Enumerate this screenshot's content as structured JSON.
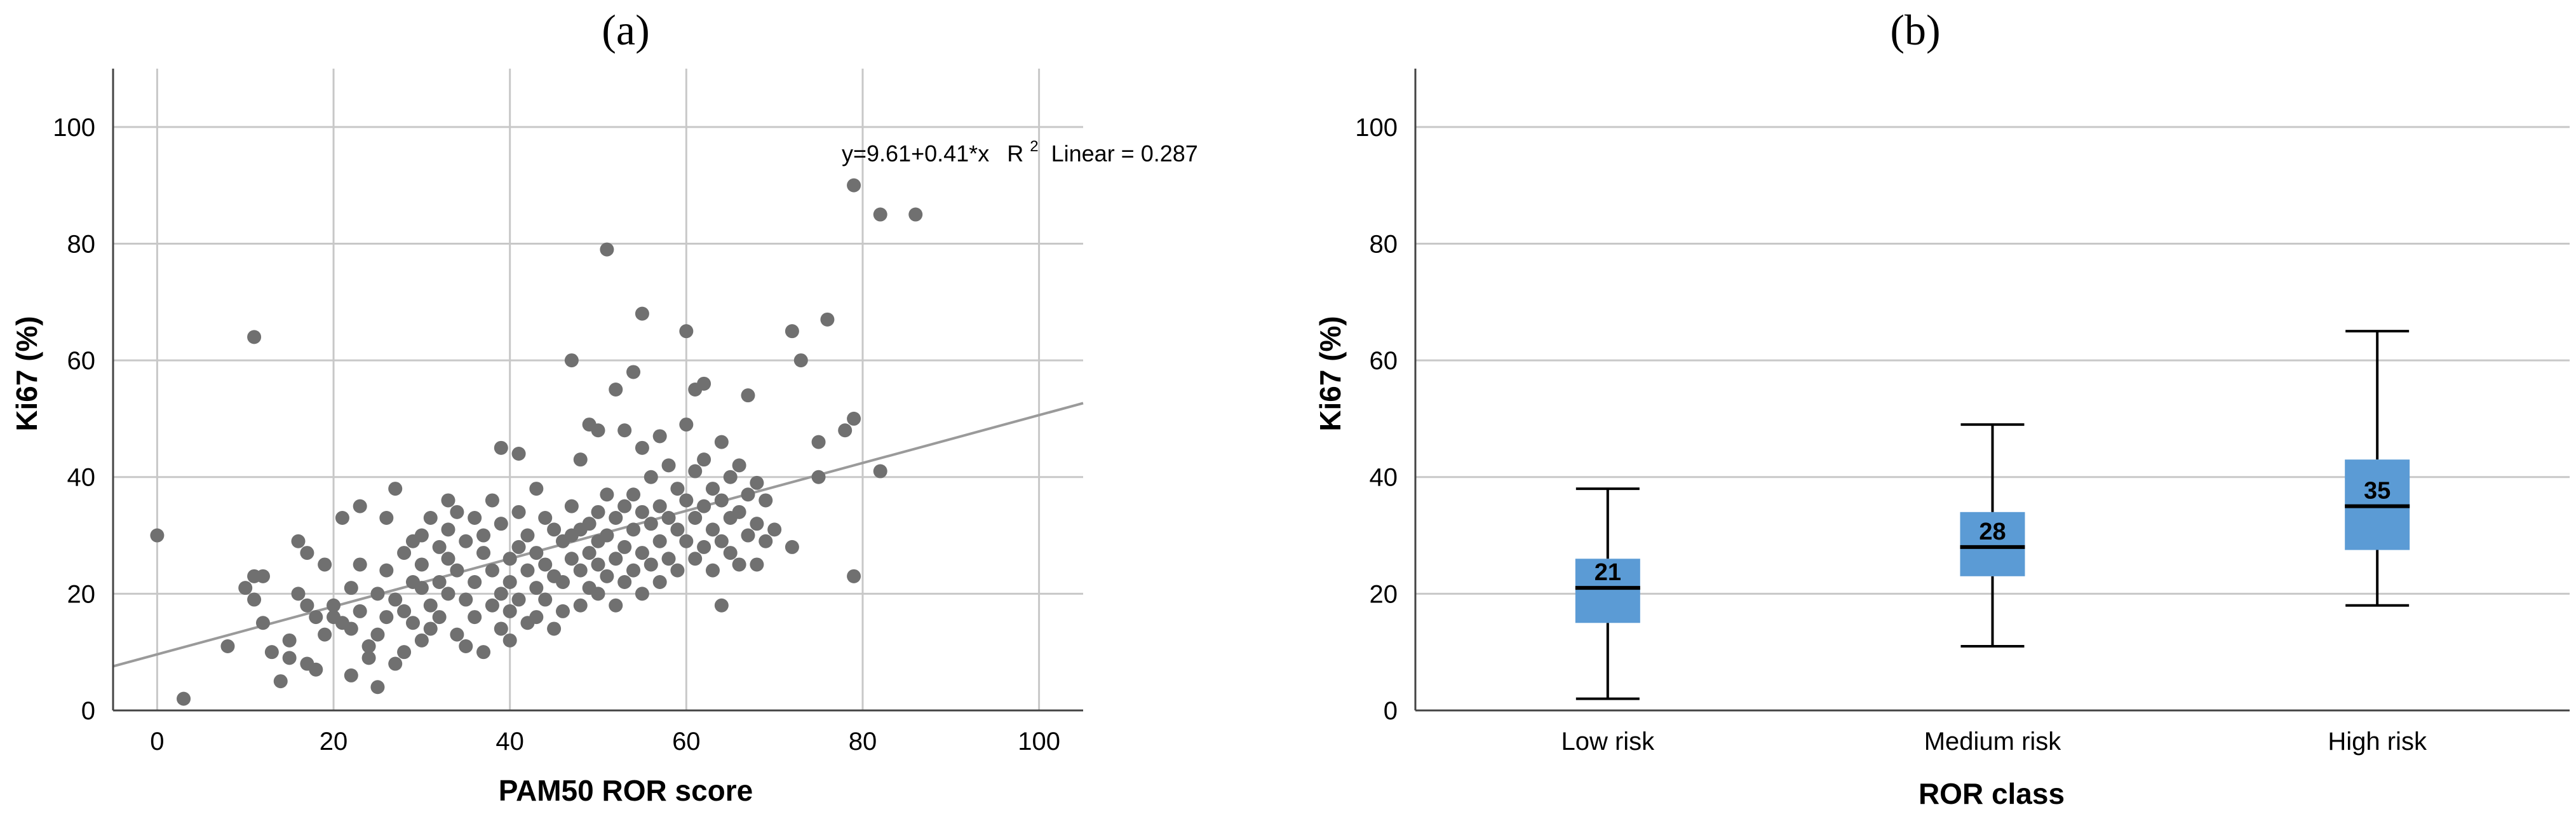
{
  "chart_data": [
    {
      "type": "scatter",
      "panel_label": "(a)",
      "xlabel": "PAM50 ROR score",
      "ylabel": "Ki67 (%)",
      "xlim": [
        -5,
        105
      ],
      "ylim": [
        0,
        110
      ],
      "xticks": [
        0,
        20,
        40,
        60,
        80,
        100
      ],
      "yticks": [
        0,
        20,
        40,
        60,
        80,
        100
      ],
      "grid": true,
      "colors": {
        "points": "#707070",
        "fit_line": "#9a9a9a",
        "grid": "#c8c8c8"
      },
      "fit": {
        "intercept": 9.61,
        "slope": 0.41
      },
      "annotation": {
        "equation": "y=9.61+0.41*x",
        "r2_prefix": "R",
        "r2_exp": "2",
        "r2_suffix": " Linear = 0.287"
      },
      "points": [
        [
          0,
          30
        ],
        [
          3,
          2
        ],
        [
          8,
          11
        ],
        [
          10,
          21
        ],
        [
          11,
          64
        ],
        [
          11,
          23
        ],
        [
          11,
          19
        ],
        [
          12,
          15
        ],
        [
          12,
          23
        ],
        [
          13,
          10
        ],
        [
          14,
          5
        ],
        [
          15,
          12
        ],
        [
          15,
          9
        ],
        [
          16,
          29
        ],
        [
          16,
          20
        ],
        [
          17,
          27
        ],
        [
          17,
          18
        ],
        [
          17,
          8
        ],
        [
          18,
          16
        ],
        [
          18,
          7
        ],
        [
          19,
          25
        ],
        [
          19,
          13
        ],
        [
          20,
          18
        ],
        [
          20,
          16
        ],
        [
          21,
          15
        ],
        [
          21,
          33
        ],
        [
          22,
          21
        ],
        [
          22,
          14
        ],
        [
          22,
          6
        ],
        [
          23,
          35
        ],
        [
          23,
          25
        ],
        [
          23,
          17
        ],
        [
          24,
          9
        ],
        [
          24,
          11
        ],
        [
          25,
          20
        ],
        [
          25,
          13
        ],
        [
          25,
          4
        ],
        [
          26,
          33
        ],
        [
          26,
          24
        ],
        [
          26,
          16
        ],
        [
          27,
          38
        ],
        [
          27,
          19
        ],
        [
          27,
          8
        ],
        [
          28,
          27
        ],
        [
          28,
          17
        ],
        [
          28,
          10
        ],
        [
          29,
          22
        ],
        [
          29,
          15
        ],
        [
          29,
          29
        ],
        [
          30,
          30
        ],
        [
          30,
          25
        ],
        [
          30,
          21
        ],
        [
          30,
          12
        ],
        [
          31,
          33
        ],
        [
          31,
          18
        ],
        [
          31,
          14
        ],
        [
          32,
          28
        ],
        [
          32,
          22
        ],
        [
          32,
          16
        ],
        [
          33,
          36
        ],
        [
          33,
          31
        ],
        [
          33,
          26
        ],
        [
          33,
          20
        ],
        [
          34,
          24
        ],
        [
          34,
          13
        ],
        [
          34,
          34
        ],
        [
          35,
          29
        ],
        [
          35,
          19
        ],
        [
          35,
          11
        ],
        [
          36,
          22
        ],
        [
          36,
          33
        ],
        [
          36,
          16
        ],
        [
          37,
          27
        ],
        [
          37,
          10
        ],
        [
          37,
          30
        ],
        [
          38,
          24
        ],
        [
          38,
          18
        ],
        [
          38,
          36
        ],
        [
          39,
          45
        ],
        [
          39,
          32
        ],
        [
          39,
          20
        ],
        [
          39,
          14
        ],
        [
          40,
          26
        ],
        [
          40,
          22
        ],
        [
          40,
          17
        ],
        [
          40,
          12
        ],
        [
          41,
          44
        ],
        [
          41,
          34
        ],
        [
          41,
          28
        ],
        [
          41,
          19
        ],
        [
          42,
          30
        ],
        [
          42,
          24
        ],
        [
          42,
          15
        ],
        [
          43,
          38
        ],
        [
          43,
          27
        ],
        [
          43,
          21
        ],
        [
          43,
          16
        ],
        [
          44,
          33
        ],
        [
          44,
          25
        ],
        [
          44,
          19
        ],
        [
          45,
          31
        ],
        [
          45,
          23
        ],
        [
          45,
          14
        ],
        [
          46,
          29
        ],
        [
          46,
          22
        ],
        [
          46,
          17
        ],
        [
          47,
          60
        ],
        [
          47,
          35
        ],
        [
          47,
          30
        ],
        [
          47,
          26
        ],
        [
          48,
          43
        ],
        [
          48,
          31
        ],
        [
          48,
          24
        ],
        [
          48,
          18
        ],
        [
          49,
          49
        ],
        [
          49,
          32
        ],
        [
          49,
          27
        ],
        [
          49,
          21
        ],
        [
          50,
          48
        ],
        [
          50,
          34
        ],
        [
          50,
          29
        ],
        [
          50,
          25
        ],
        [
          50,
          20
        ],
        [
          51,
          79
        ],
        [
          51,
          37
        ],
        [
          51,
          30
        ],
        [
          51,
          23
        ],
        [
          52,
          55
        ],
        [
          52,
          33
        ],
        [
          52,
          26
        ],
        [
          52,
          18
        ],
        [
          53,
          48
        ],
        [
          53,
          35
        ],
        [
          53,
          28
        ],
        [
          53,
          22
        ],
        [
          54,
          58
        ],
        [
          54,
          37
        ],
        [
          54,
          31
        ],
        [
          54,
          24
        ],
        [
          55,
          68
        ],
        [
          55,
          45
        ],
        [
          55,
          34
        ],
        [
          55,
          27
        ],
        [
          55,
          20
        ],
        [
          56,
          40
        ],
        [
          56,
          32
        ],
        [
          56,
          25
        ],
        [
          57,
          47
        ],
        [
          57,
          35
        ],
        [
          57,
          29
        ],
        [
          57,
          22
        ],
        [
          58,
          42
        ],
        [
          58,
          33
        ],
        [
          58,
          26
        ],
        [
          59,
          38
        ],
        [
          59,
          31
        ],
        [
          59,
          24
        ],
        [
          60,
          65
        ],
        [
          60,
          49
        ],
        [
          60,
          36
        ],
        [
          60,
          29
        ],
        [
          61,
          55
        ],
        [
          61,
          41
        ],
        [
          61,
          33
        ],
        [
          61,
          26
        ],
        [
          62,
          56
        ],
        [
          62,
          43
        ],
        [
          62,
          35
        ],
        [
          62,
          28
        ],
        [
          63,
          38
        ],
        [
          63,
          31
        ],
        [
          63,
          24
        ],
        [
          64,
          46
        ],
        [
          64,
          36
        ],
        [
          64,
          29
        ],
        [
          64,
          18
        ],
        [
          65,
          40
        ],
        [
          65,
          33
        ],
        [
          65,
          27
        ],
        [
          66,
          42
        ],
        [
          66,
          34
        ],
        [
          66,
          25
        ],
        [
          67,
          54
        ],
        [
          67,
          37
        ],
        [
          67,
          30
        ],
        [
          68,
          39
        ],
        [
          68,
          32
        ],
        [
          68,
          25
        ],
        [
          69,
          36
        ],
        [
          69,
          29
        ],
        [
          70,
          31
        ],
        [
          72,
          65
        ],
        [
          72,
          28
        ],
        [
          73,
          60
        ],
        [
          75,
          46
        ],
        [
          75,
          40
        ],
        [
          76,
          67
        ],
        [
          78,
          48
        ],
        [
          79,
          90
        ],
        [
          79,
          50
        ],
        [
          79,
          23
        ],
        [
          82,
          41
        ],
        [
          82,
          85
        ],
        [
          86,
          85
        ]
      ]
    },
    {
      "type": "box",
      "panel_label": "(b)",
      "xlabel": "ROR class",
      "ylabel": "Ki67 (%)",
      "ylim": [
        0,
        110
      ],
      "yticks": [
        0,
        20,
        40,
        60,
        80,
        100
      ],
      "grid": true,
      "colors": {
        "box": "#5b9bd5",
        "whisker": "#000000",
        "median": "#000000",
        "grid": "#c8c8c8"
      },
      "categories": [
        "Low risk",
        "Medium risk",
        "High risk"
      ],
      "boxes": [
        {
          "min": 2,
          "q1": 15,
          "median": 21,
          "q3": 26,
          "max": 38,
          "label": "21"
        },
        {
          "min": 11,
          "q1": 23,
          "median": 28,
          "q3": 34,
          "max": 49,
          "label": "28"
        },
        {
          "min": 18,
          "q1": 27.5,
          "median": 35,
          "q3": 43,
          "max": 65,
          "label": "35"
        }
      ]
    }
  ]
}
